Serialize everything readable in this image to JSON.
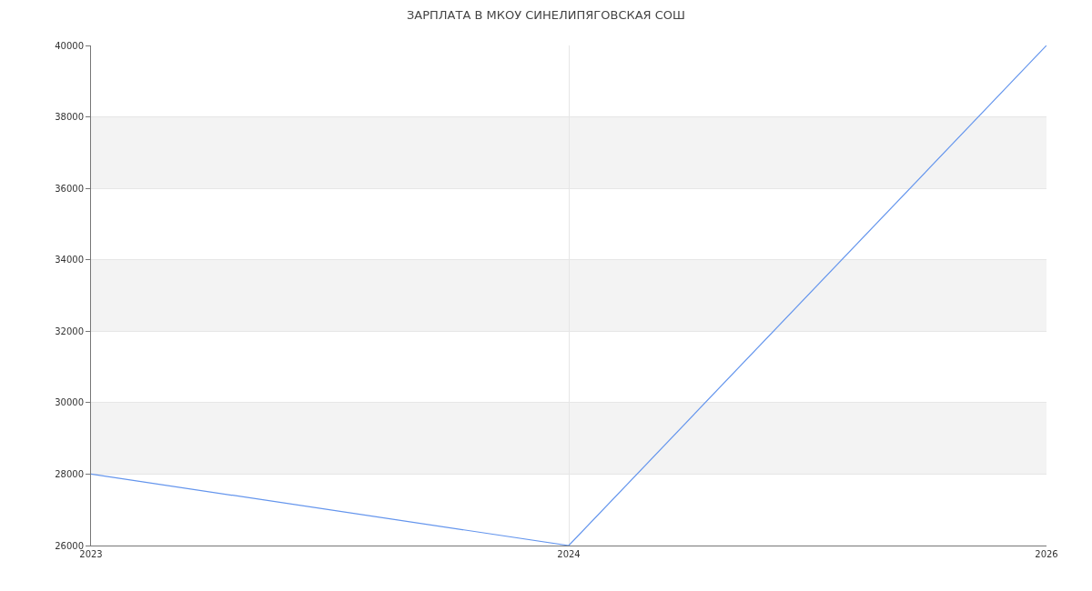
{
  "chart_data": {
    "type": "line",
    "title": "ЗАРПЛАТА В МКОУ СИНЕЛИПЯГОВСКАЯ СОШ",
    "categories": [
      "2023",
      "2024",
      "2026"
    ],
    "series": [
      {
        "color": "#6495ed",
        "values": [
          28000,
          26000,
          40000
        ]
      }
    ],
    "ylim": [
      26000,
      40000
    ],
    "yticks": [
      26000,
      28000,
      30000,
      32000,
      34000,
      36000,
      38000,
      40000
    ],
    "bands": [
      {
        "axis": "y",
        "from": 28000,
        "to": 30000,
        "color": "#f3f3f3"
      },
      {
        "axis": "y",
        "from": 32000,
        "to": 34000,
        "color": "#f3f3f3"
      },
      {
        "axis": "y",
        "from": 36000,
        "to": 38000,
        "color": "#f3f3f3"
      }
    ],
    "grid": true,
    "marker": "none",
    "line_style": "solid"
  }
}
